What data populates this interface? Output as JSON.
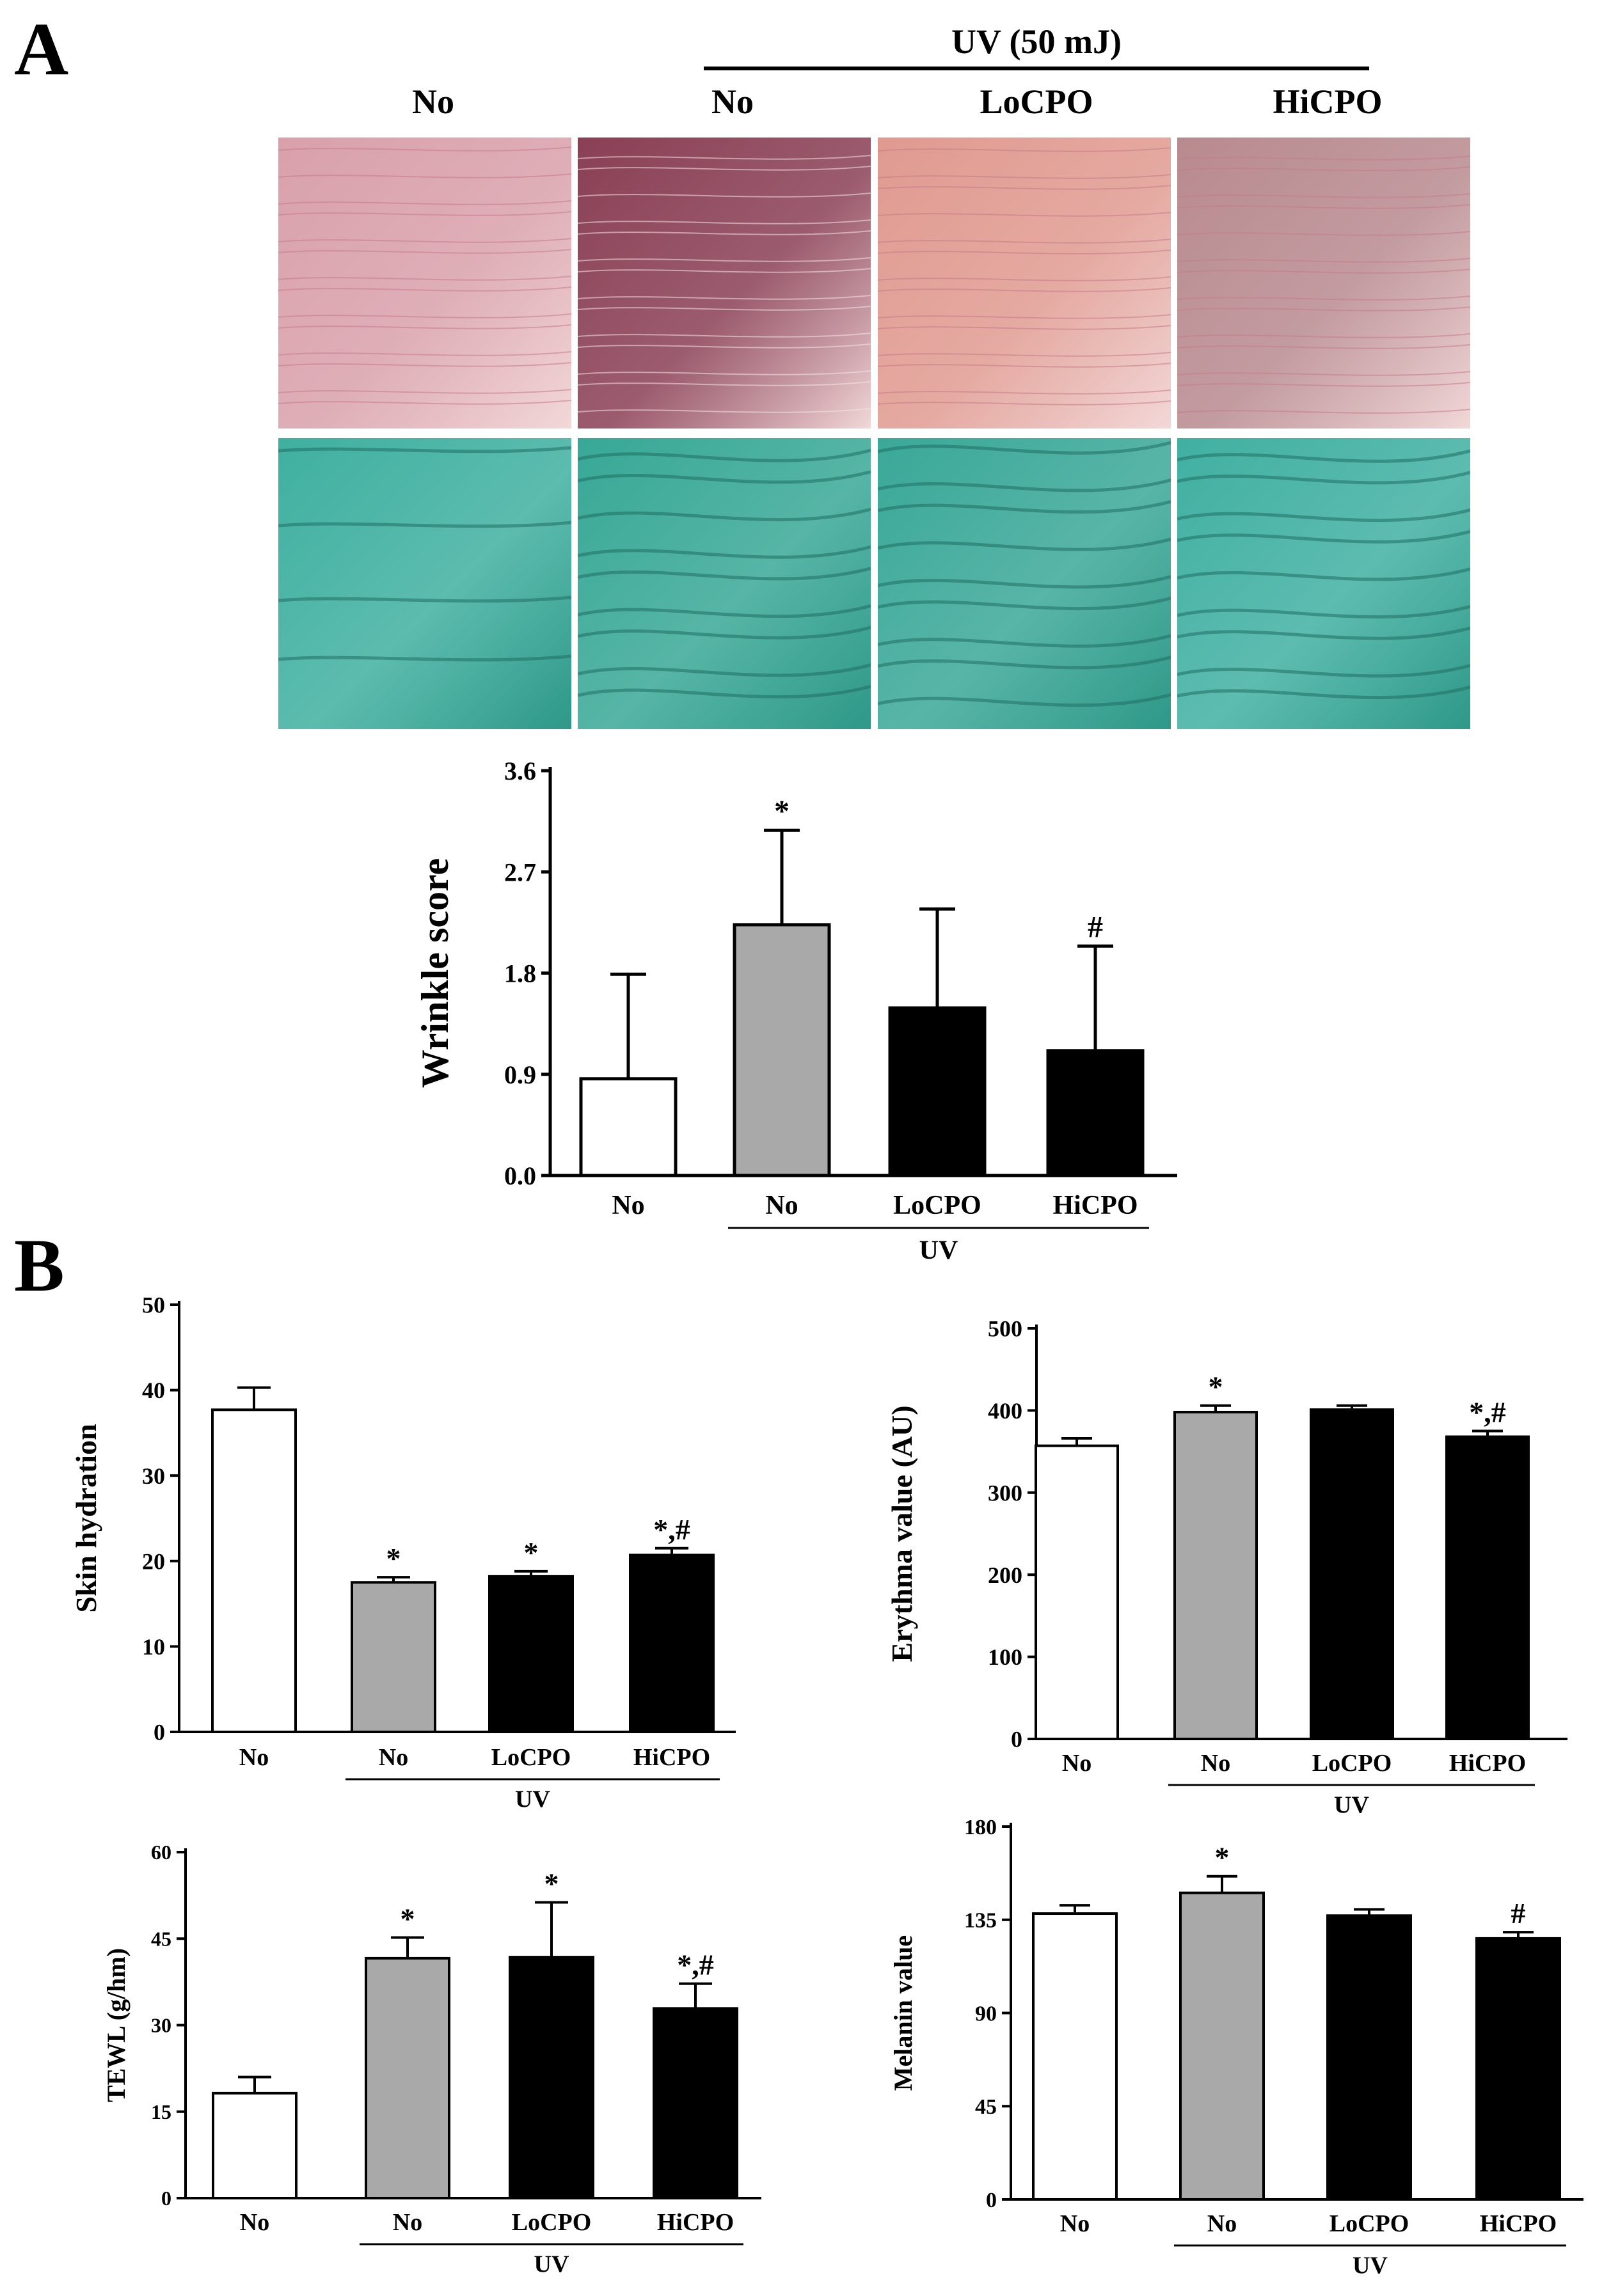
{
  "figure": {
    "panel_a_label": "A",
    "panel_b_label": "B",
    "uv_header": "UV (50 mJ)",
    "column_labels": [
      "No",
      "No",
      "LoCPO",
      "HiCPO"
    ],
    "photo_rows": [
      {
        "name": "skin-photo-row",
        "colors": [
          "#d9a0ab",
          "#8a3f55",
          "#e09a90",
          "#b88a8f"
        ]
      },
      {
        "name": "replica-row",
        "colors": [
          "#3fb0a0",
          "#38a896",
          "#3aa898",
          "#40b0a2"
        ]
      }
    ]
  },
  "colors": {
    "control": "#ffffff",
    "uv": "#a9a9a9",
    "treated": "#000000",
    "axis": "#000000"
  },
  "chart_data": [
    {
      "id": "wrinkle",
      "type": "bar",
      "title": "",
      "ylabel": "Wrinkle score",
      "xlabel": "",
      "group_label": "UV",
      "categories": [
        "No",
        "No",
        "LoCPO",
        "HiCPO"
      ],
      "values": [
        0.86,
        2.23,
        1.49,
        1.11
      ],
      "errors": [
        0.93,
        0.84,
        0.88,
        0.93
      ],
      "annotations": [
        "",
        "*",
        "",
        "#"
      ],
      "ylim": [
        0,
        3.6
      ],
      "yticks": [
        "0.0",
        "0.9",
        "1.8",
        "2.7",
        "3.6"
      ],
      "grid": false
    },
    {
      "id": "hydration",
      "type": "bar",
      "title": "",
      "ylabel": "Skin hydration",
      "xlabel": "",
      "group_label": "UV",
      "categories": [
        "No",
        "No",
        "LoCPO",
        "HiCPO"
      ],
      "values": [
        37.7,
        17.5,
        18.2,
        20.7
      ],
      "errors": [
        2.6,
        0.6,
        0.6,
        0.8
      ],
      "annotations": [
        "",
        "*",
        "*",
        "*,#"
      ],
      "ylim": [
        0,
        50
      ],
      "yticks": [
        "0",
        "10",
        "20",
        "30",
        "40",
        "50"
      ],
      "grid": false
    },
    {
      "id": "erythma",
      "type": "bar",
      "title": "",
      "ylabel": "Erythma value (AU)",
      "xlabel": "",
      "group_label": "UV",
      "categories": [
        "No",
        "No",
        "LoCPO",
        "HiCPO"
      ],
      "values": [
        357,
        398,
        401,
        368
      ],
      "errors": [
        9,
        8,
        5,
        7
      ],
      "annotations": [
        "",
        "*",
        "",
        "*,#"
      ],
      "ylim": [
        0,
        500
      ],
      "yticks": [
        "0",
        "100",
        "200",
        "300",
        "400",
        "500"
      ],
      "grid": false
    },
    {
      "id": "tewl",
      "type": "bar",
      "title": "",
      "ylabel": "TEWL (g/hm)",
      "xlabel": "",
      "group_label": "UV",
      "categories": [
        "No",
        "No",
        "LoCPO",
        "HiCPO"
      ],
      "values": [
        18.2,
        41.6,
        41.8,
        32.9
      ],
      "errors": [
        2.8,
        3.6,
        9.5,
        4.3
      ],
      "annotations": [
        "",
        "*",
        "*",
        "*,#"
      ],
      "ylim": [
        0,
        60
      ],
      "yticks": [
        "0",
        "15",
        "30",
        "45",
        "60"
      ],
      "grid": false
    },
    {
      "id": "melanin",
      "type": "bar",
      "title": "",
      "ylabel": "Melanin value",
      "xlabel": "",
      "group_label": "UV",
      "categories": [
        "No",
        "No",
        "LoCPO",
        "HiCPO"
      ],
      "values": [
        138,
        148,
        137,
        126
      ],
      "errors": [
        4,
        8,
        3,
        3
      ],
      "annotations": [
        "",
        "*",
        "",
        "#"
      ],
      "ylim": [
        0,
        180
      ],
      "yticks": [
        "0",
        "45",
        "90",
        "135",
        "180"
      ],
      "grid": false
    }
  ]
}
